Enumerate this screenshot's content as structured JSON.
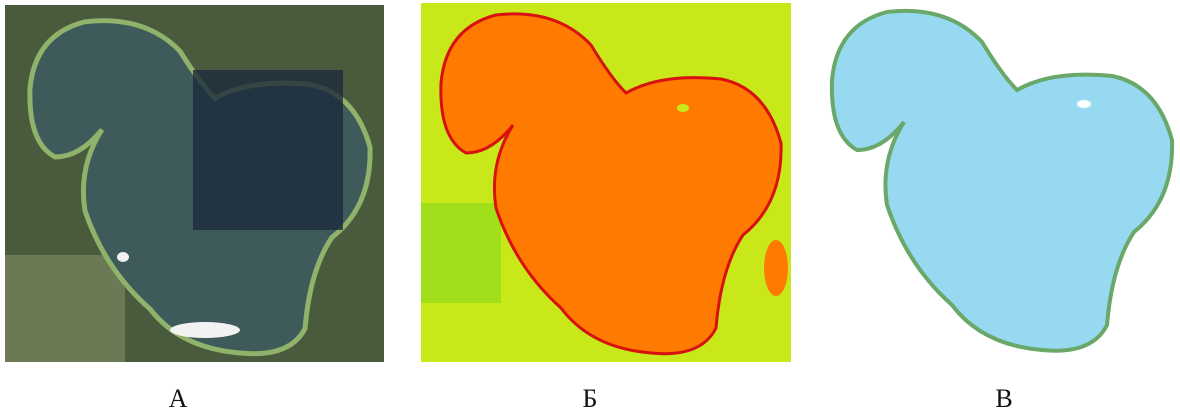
{
  "panels": [
    {
      "label": "А"
    },
    {
      "label": "Б"
    },
    {
      "label": "В"
    }
  ]
}
